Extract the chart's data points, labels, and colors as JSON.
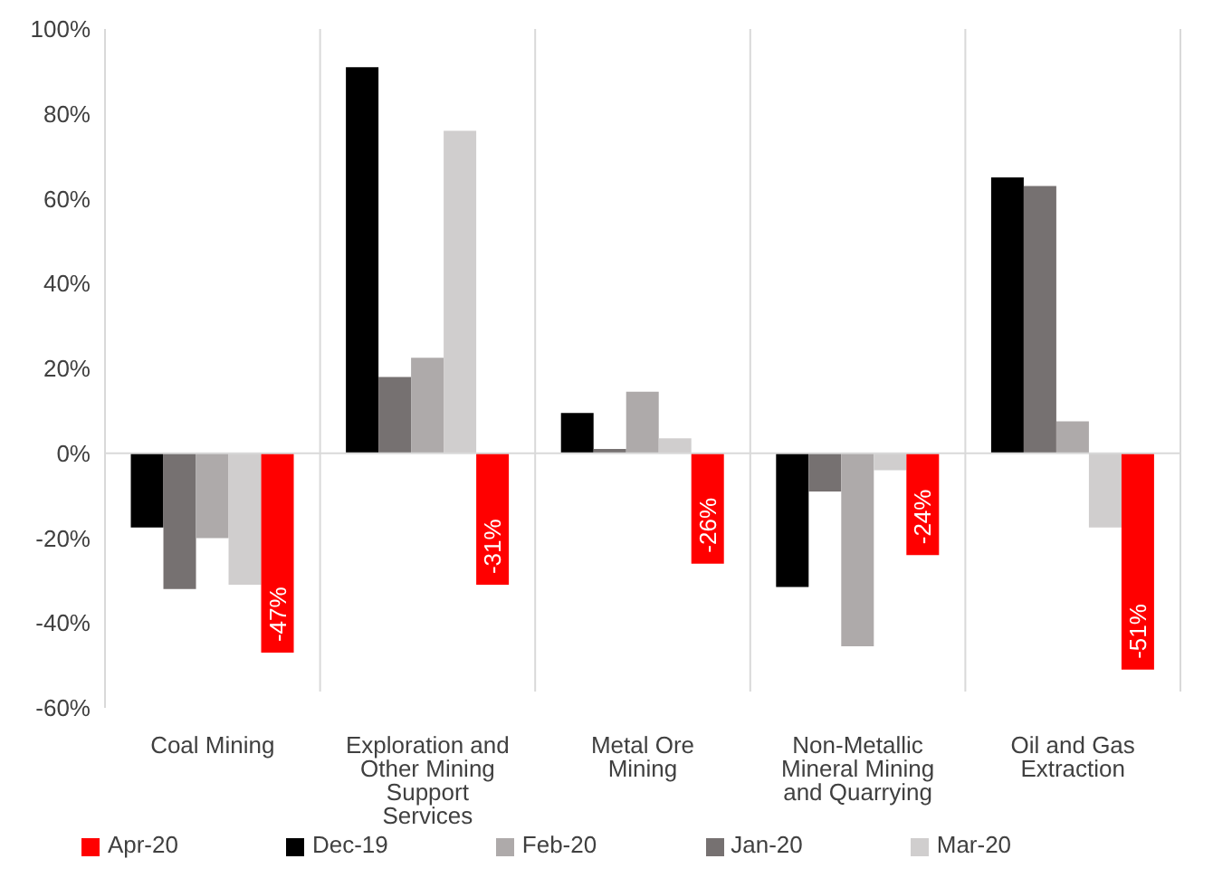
{
  "chart_data": {
    "type": "bar",
    "categories": [
      "Coal Mining",
      "Exploration and Other Mining Support Services",
      "Metal Ore Mining",
      "Non-Metallic Mineral Mining and Quarrying",
      "Oil and Gas Extraction"
    ],
    "series": [
      {
        "name": "Dec-19",
        "color": "#000000",
        "values": [
          -17.5,
          91,
          9.5,
          -31.5,
          65
        ]
      },
      {
        "name": "Jan-20",
        "color": "#767171",
        "values": [
          -32,
          18,
          1,
          -9,
          63
        ]
      },
      {
        "name": "Feb-20",
        "color": "#aeaaaa",
        "values": [
          -20,
          22.5,
          14.5,
          -45.5,
          7.5
        ]
      },
      {
        "name": "Mar-20",
        "color": "#d0cece",
        "values": [
          -31,
          76,
          3.5,
          -4,
          -17.5
        ]
      },
      {
        "name": "Apr-20",
        "color": "#ff0000",
        "values": [
          -47,
          -31,
          -26,
          -24,
          -51
        ],
        "value_labels": [
          "-47%",
          "-31%",
          "-26%",
          "-24%",
          "-51%"
        ]
      }
    ],
    "ylim": [
      -60,
      100
    ],
    "yticks": [
      {
        "value": -60,
        "label": "-60%"
      },
      {
        "value": -40,
        "label": "-40%"
      },
      {
        "value": -20,
        "label": "-20%"
      },
      {
        "value": 0,
        "label": "0%"
      },
      {
        "value": 20,
        "label": "20%"
      },
      {
        "value": 40,
        "label": "40%"
      },
      {
        "value": 60,
        "label": "60%"
      },
      {
        "value": 80,
        "label": "80%"
      },
      {
        "value": 100,
        "label": "100%"
      }
    ],
    "legend": "bottom"
  }
}
